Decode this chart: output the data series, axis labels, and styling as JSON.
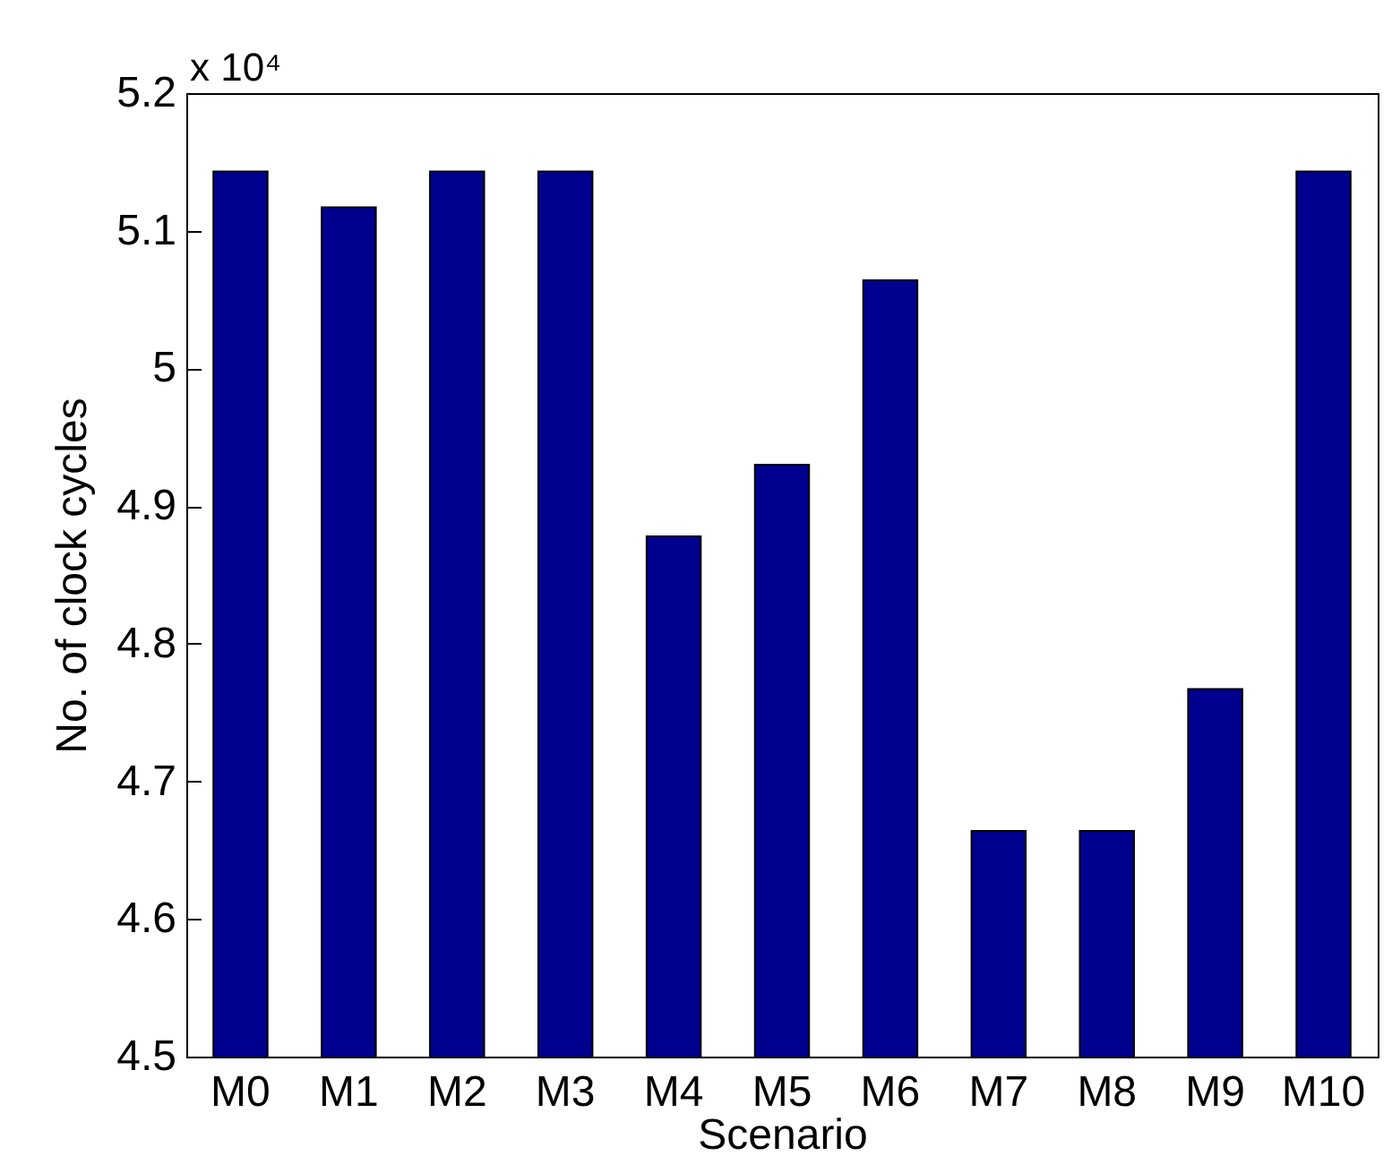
{
  "chart_data": {
    "type": "bar",
    "xlabel": "Scenario",
    "ylabel": "No. of clock cycles",
    "annotations": [
      "x 10⁴"
    ],
    "categories": [
      "M0",
      "M1",
      "M2",
      "M3",
      "M4",
      "M5",
      "M6",
      "M7",
      "M8",
      "M9",
      "M10"
    ],
    "values": [
      5.143,
      5.117,
      5.143,
      5.143,
      4.878,
      4.93,
      5.064,
      4.664,
      4.664,
      4.767,
      5.143
    ],
    "color": "#00008f",
    "ylim": [
      4.5,
      5.2
    ],
    "yticks": [
      4.5,
      4.6,
      4.7,
      4.8,
      4.9,
      5,
      5.1,
      5.2
    ],
    "grid": false
  }
}
